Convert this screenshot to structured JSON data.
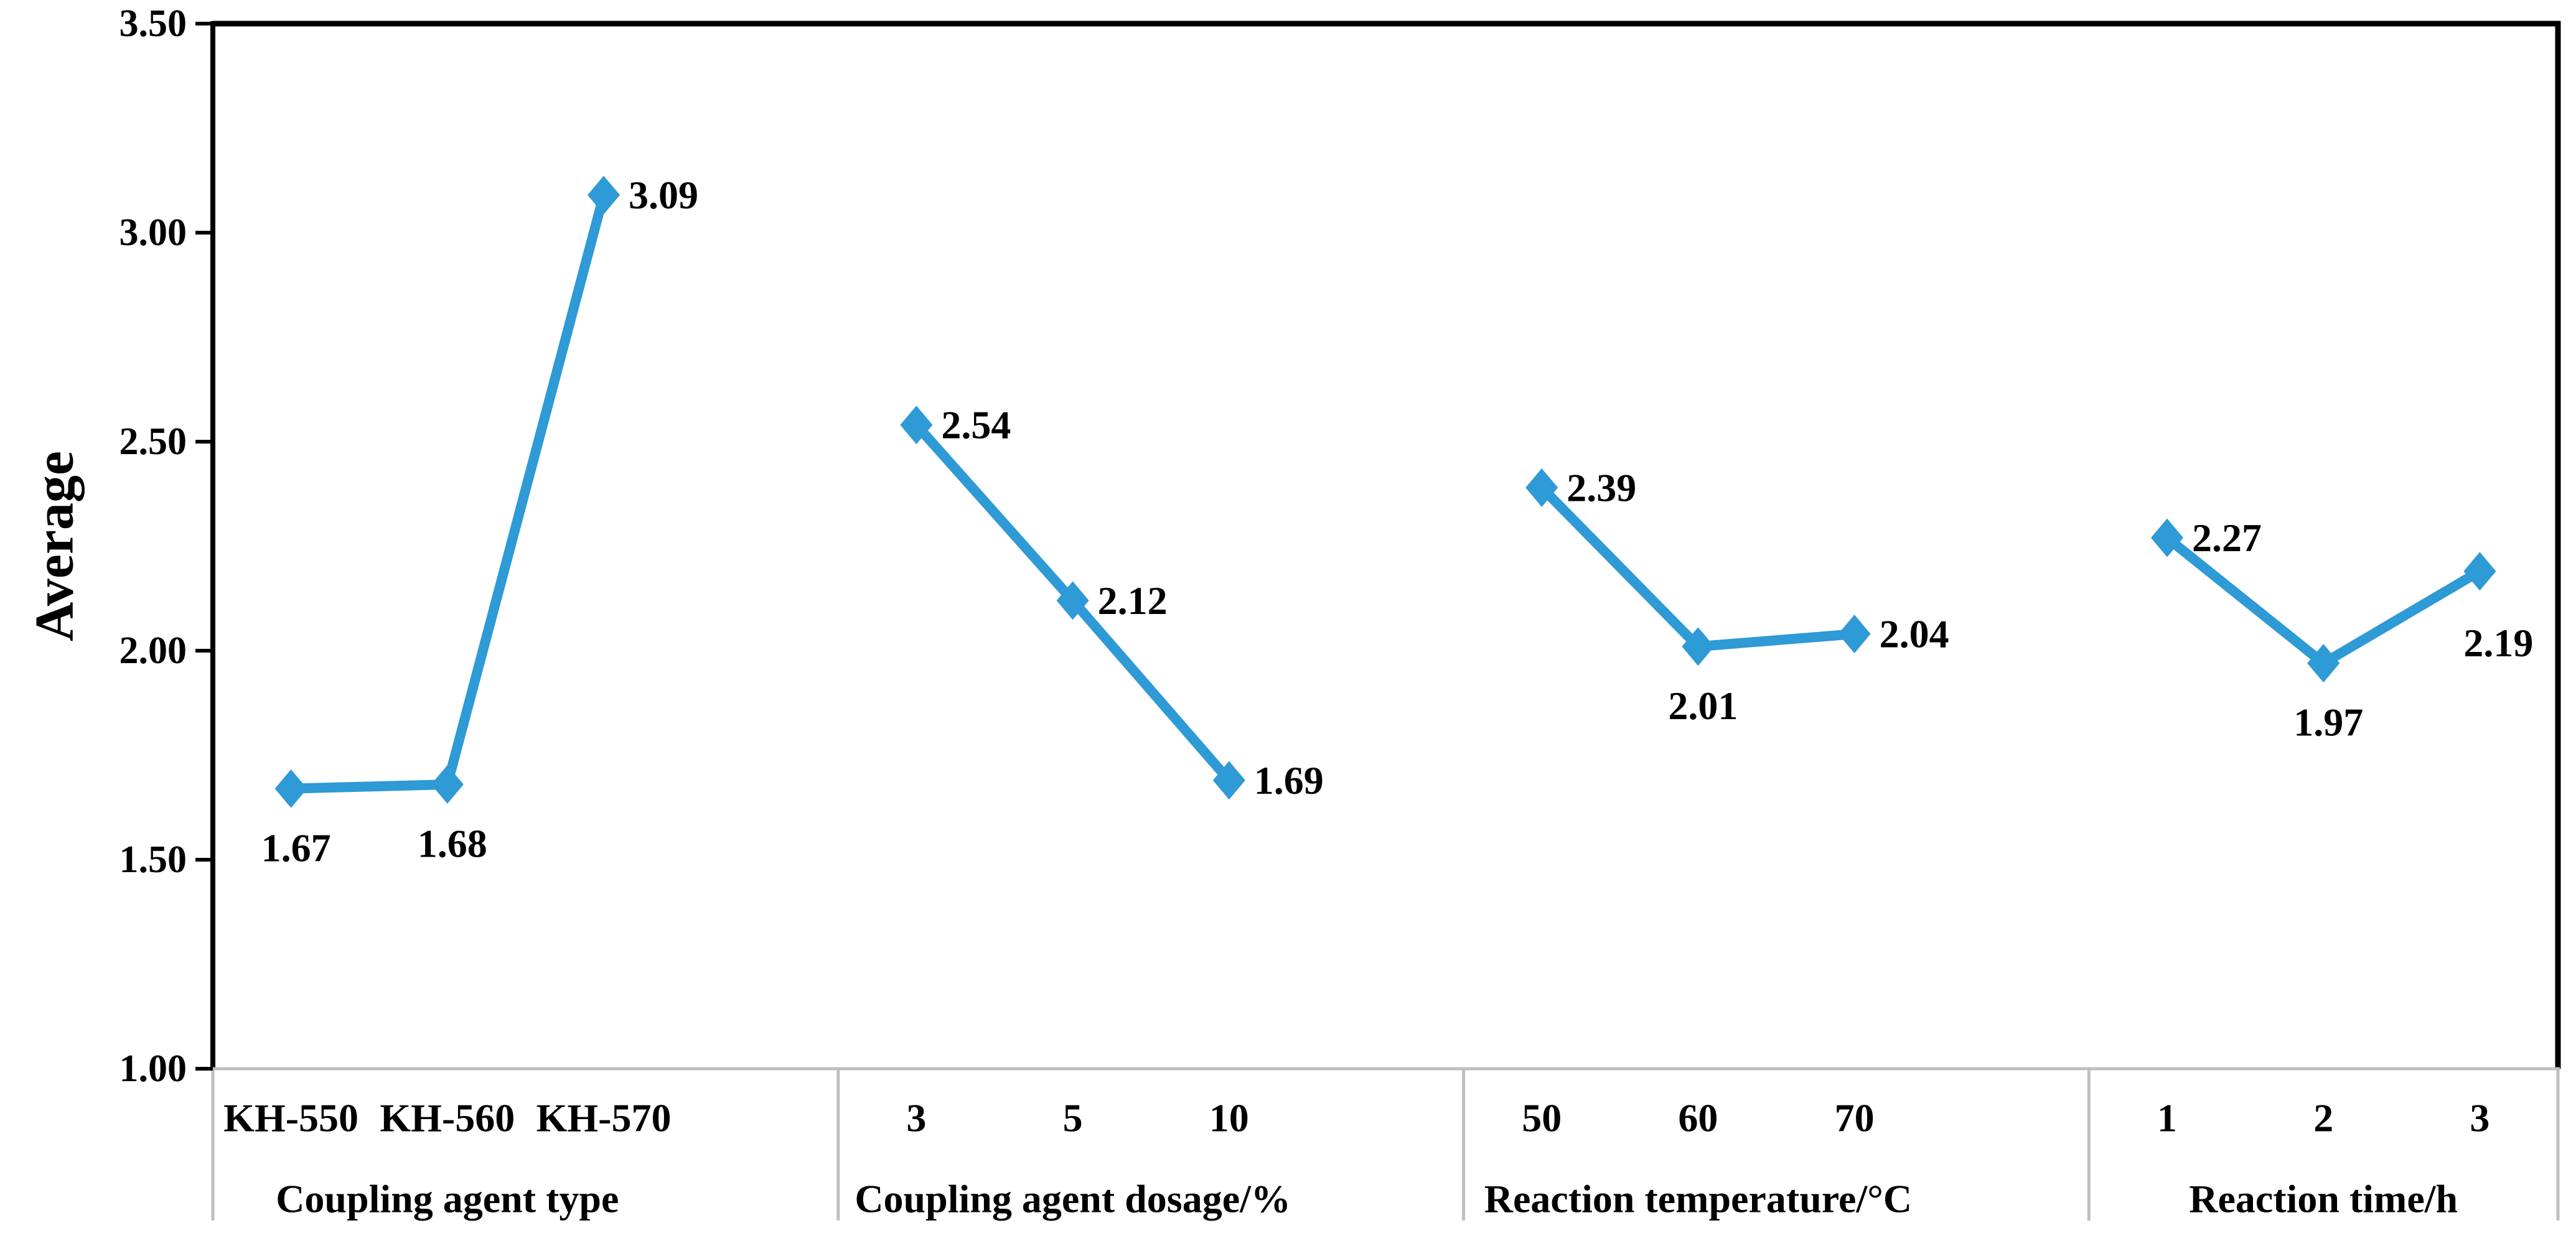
{
  "chart_data": {
    "type": "line",
    "title": "",
    "ylabel": "Average",
    "y_axis": {
      "min": 1.0,
      "max": 3.5,
      "step": 0.5,
      "tick_labels": [
        "1.00",
        "1.50",
        "2.00",
        "2.50",
        "3.00",
        "3.50"
      ]
    },
    "legend": "none",
    "grid": "off",
    "groups": [
      {
        "title": "Coupling agent type",
        "categories": [
          "KH-550",
          "KH-560",
          "KH-570"
        ],
        "values": [
          1.67,
          1.68,
          3.09
        ],
        "value_labels": [
          "1.67",
          "1.68",
          "3.09"
        ],
        "label_positions": [
          "below",
          "below",
          "right"
        ]
      },
      {
        "title": "Coupling agent dosage/%",
        "categories": [
          "3",
          "5",
          "10"
        ],
        "values": [
          2.54,
          2.12,
          1.69
        ],
        "value_labels": [
          "2.54",
          "2.12",
          "1.69"
        ],
        "label_positions": [
          "right",
          "right",
          "right"
        ]
      },
      {
        "title": "Reaction temperature/°C",
        "categories": [
          "50",
          "60",
          "70"
        ],
        "values": [
          2.39,
          2.01,
          2.04
        ],
        "value_labels": [
          "2.39",
          "2.01",
          "2.04"
        ],
        "label_positions": [
          "right",
          "below",
          "right"
        ]
      },
      {
        "title": "Reaction time/h",
        "categories": [
          "1",
          "2",
          "3"
        ],
        "values": [
          2.27,
          1.97,
          2.19
        ],
        "value_labels": [
          "2.27",
          "1.97",
          "2.19"
        ],
        "label_positions": [
          "right",
          "below",
          "below-right"
        ]
      }
    ],
    "colors": {
      "series": "#2E9AD6",
      "axis": "#000000",
      "divider": "#BFBFBF",
      "text": "#000000",
      "background": "#FFFFFF"
    },
    "marker": "diamond"
  }
}
